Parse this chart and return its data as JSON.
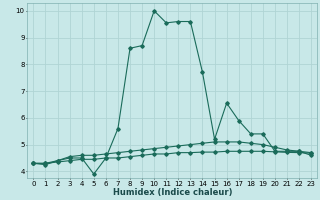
{
  "xlabel": "Humidex (Indice chaleur)",
  "background_color": "#c8e8e8",
  "grid_color": "#b0d4d4",
  "line_color": "#1a6b5a",
  "xlim": [
    -0.5,
    23.5
  ],
  "ylim": [
    3.75,
    10.3
  ],
  "xticks": [
    0,
    1,
    2,
    3,
    4,
    5,
    6,
    7,
    8,
    9,
    10,
    11,
    12,
    13,
    14,
    15,
    16,
    17,
    18,
    19,
    20,
    21,
    22,
    23
  ],
  "yticks": [
    4,
    5,
    6,
    7,
    8,
    9,
    10
  ],
  "series": [
    {
      "x": [
        0,
        1,
        2,
        3,
        4,
        5,
        6,
        7,
        8,
        9,
        10,
        11,
        12,
        13,
        14,
        15,
        16,
        17,
        18,
        19,
        20,
        21,
        22,
        23
      ],
      "y": [
        4.3,
        4.25,
        4.4,
        4.5,
        4.5,
        3.9,
        4.5,
        5.6,
        8.6,
        8.7,
        10.0,
        9.55,
        9.6,
        9.6,
        7.7,
        5.2,
        6.55,
        5.9,
        5.4,
        5.4,
        4.75,
        4.75,
        4.75,
        4.6
      ]
    },
    {
      "x": [
        0,
        1,
        2,
        3,
        4,
        5,
        6,
        7,
        8,
        9,
        10,
        11,
        12,
        13,
        14,
        15,
        16,
        17,
        18,
        19,
        20,
        21,
        22,
        23
      ],
      "y": [
        4.3,
        4.3,
        4.4,
        4.55,
        4.6,
        4.6,
        4.65,
        4.7,
        4.75,
        4.8,
        4.85,
        4.9,
        4.95,
        5.0,
        5.05,
        5.1,
        5.1,
        5.1,
        5.05,
        5.0,
        4.9,
        4.8,
        4.75,
        4.7
      ]
    },
    {
      "x": [
        0,
        1,
        2,
        3,
        4,
        5,
        6,
        7,
        8,
        9,
        10,
        11,
        12,
        13,
        14,
        15,
        16,
        17,
        18,
        19,
        20,
        21,
        22,
        23
      ],
      "y": [
        4.3,
        4.3,
        4.35,
        4.4,
        4.45,
        4.45,
        4.5,
        4.5,
        4.55,
        4.6,
        4.65,
        4.65,
        4.7,
        4.7,
        4.72,
        4.72,
        4.75,
        4.75,
        4.75,
        4.75,
        4.73,
        4.71,
        4.7,
        4.68
      ]
    }
  ]
}
